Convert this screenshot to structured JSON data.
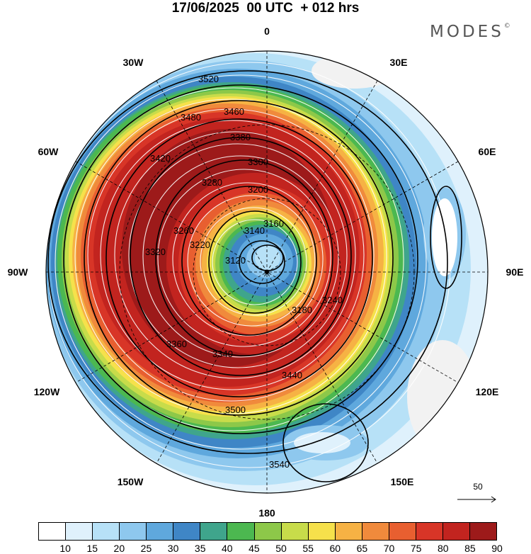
{
  "title": "17/06/2025  00 UTC  + 012 hrs",
  "brand": "MODES",
  "brand_mark": "©",
  "longitude_labels": [
    "0",
    "30E",
    "60E",
    "90E",
    "120E",
    "150E",
    "180",
    "150W",
    "120W",
    "90W",
    "60W",
    "30W"
  ],
  "contour_labels": [
    "3520",
    "3480",
    "3460",
    "3440",
    "3420",
    "3380",
    "3360",
    "3340",
    "3320",
    "3300",
    "3280",
    "3260",
    "3240",
    "3220",
    "3200",
    "3180",
    "3160",
    "3140",
    "3120",
    "3500",
    "3540"
  ],
  "vector_reference": {
    "label": "50"
  },
  "colorbar": {
    "labels": [
      "10",
      "15",
      "20",
      "25",
      "30",
      "35",
      "40",
      "45",
      "50",
      "55",
      "60",
      "65",
      "70",
      "75",
      "80",
      "85",
      "90"
    ],
    "colors": [
      "#ffffff",
      "#dff1fc",
      "#b7e1f7",
      "#8ec8ee",
      "#5fa8dd",
      "#3f86c6",
      "#3fa58c",
      "#4cb850",
      "#8dc849",
      "#c8dc4a",
      "#f6e14b",
      "#f6b244",
      "#f08a3c",
      "#e85f30",
      "#d83527",
      "#c2241f",
      "#9d1a1a"
    ]
  }
}
